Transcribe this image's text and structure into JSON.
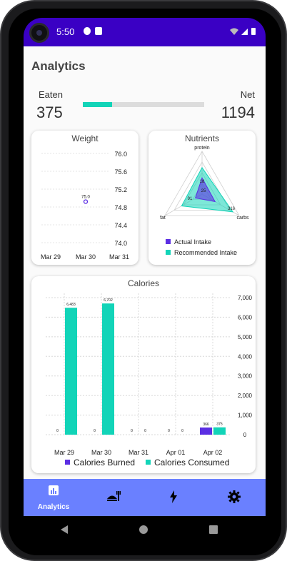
{
  "status_bar": {
    "time": "5:50"
  },
  "page": {
    "title": "Analytics"
  },
  "summary": {
    "eaten_label": "Eaten",
    "eaten_value": "375",
    "net_label": "Net",
    "net_value": "1194",
    "progress_fraction": 0.24
  },
  "weight_card": {
    "title": "Weight",
    "chart_data": {
      "type": "scatter",
      "y_ticks": [
        "76.0",
        "75.6",
        "75.2",
        "74.8",
        "74.4",
        "74.0"
      ],
      "x_ticks": [
        "Mar 29",
        "Mar 30",
        "Mar 31"
      ],
      "points": [
        {
          "x": "Mar 30",
          "y": 75.0,
          "label": "75.0"
        }
      ],
      "ylim": [
        74.0,
        76.0
      ]
    }
  },
  "nutrients_card": {
    "title": "Nutrients",
    "chart_data": {
      "type": "radar",
      "axes": [
        "protein",
        "carbs",
        "fat"
      ],
      "ring_labels": [
        "18",
        "25",
        "91",
        "316"
      ],
      "series": [
        {
          "name": "Actual Intake",
          "color": "#5b2ee3"
        },
        {
          "name": "Recommended Intake",
          "color": "#12d4b8"
        }
      ]
    }
  },
  "calories_card": {
    "title": "Calories",
    "chart_data": {
      "type": "bar",
      "categories": [
        "Mar 29",
        "Mar 30",
        "Mar 31",
        "Apr 01",
        "Apr 02"
      ],
      "series": [
        {
          "name": "Calories Burned",
          "color": "#5b2ee3",
          "values": [
            0,
            0,
            0,
            0,
            366
          ],
          "labels": [
            "0",
            "0",
            "0",
            "0",
            "366"
          ]
        },
        {
          "name": "Calories Consumed",
          "color": "#12d4b8",
          "values": [
            6483,
            6702,
            0,
            0,
            375
          ],
          "labels": [
            "6,483",
            "6,702",
            "0",
            "0",
            "375"
          ]
        }
      ],
      "y_ticks": [
        "7,000",
        "6,000",
        "5,000",
        "4,000",
        "3,000",
        "2,000",
        "1,000",
        "0"
      ],
      "ylim": [
        0,
        7000
      ]
    }
  },
  "nav": {
    "items": [
      {
        "label": "Analytics",
        "icon": "analytics-icon"
      },
      {
        "label": "",
        "icon": "food-icon"
      },
      {
        "label": "",
        "icon": "bolt-icon"
      },
      {
        "label": "",
        "icon": "gear-icon"
      }
    ]
  }
}
